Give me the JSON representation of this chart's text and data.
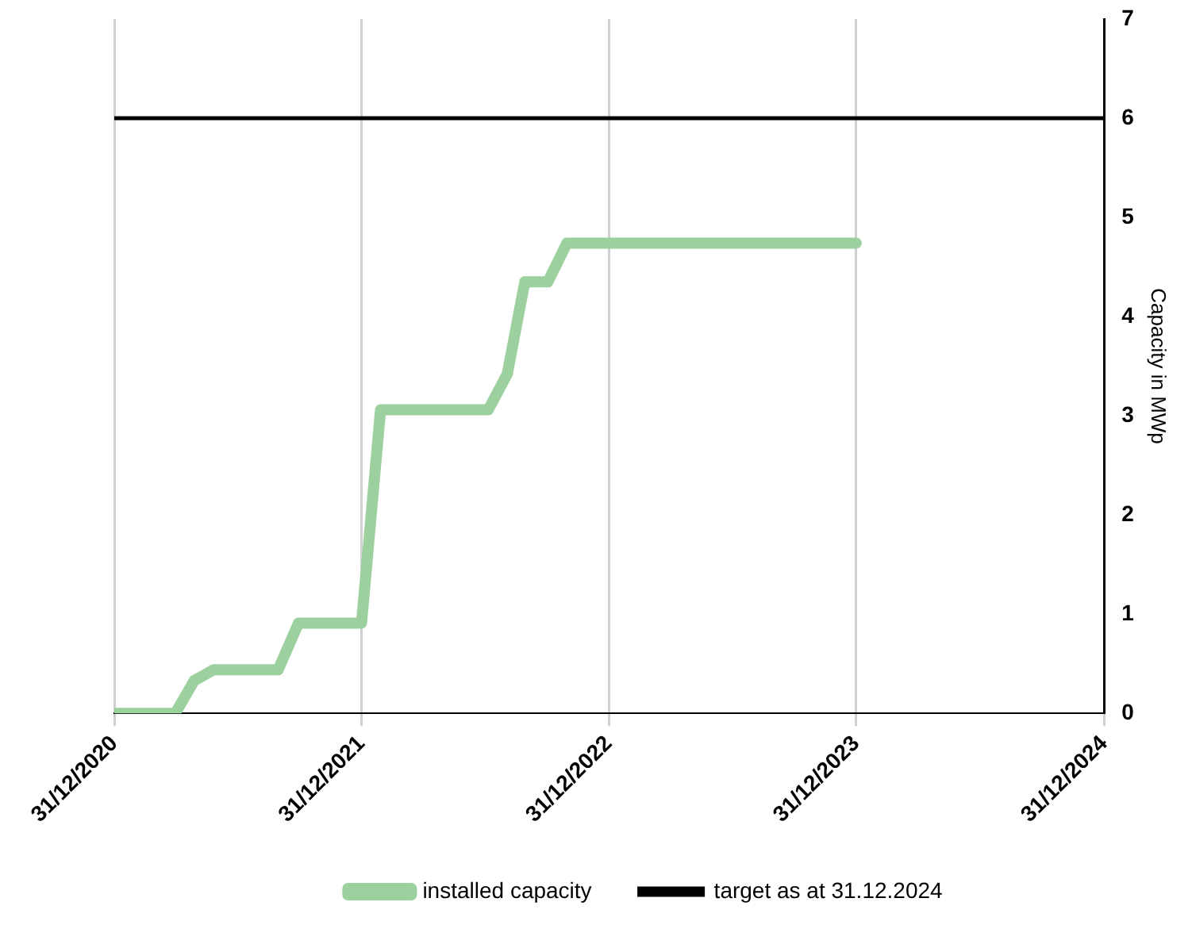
{
  "chart_data": {
    "type": "line",
    "ylabel": "Capacity in MWp",
    "x": [
      "2020-12-31",
      "2021-03-31",
      "2021-04-28",
      "2021-05-27",
      "2021-08-30",
      "2021-09-29",
      "2021-12-31",
      "2022-01-28",
      "2022-07-06",
      "2022-08-03",
      "2022-08-29",
      "2022-10-02",
      "2022-10-30",
      "2023-12-31"
    ],
    "series": [
      {
        "name": "installed capacity",
        "color": "#9dd09f",
        "values": [
          0,
          0,
          0.33,
          0.44,
          0.44,
          0.91,
          0.91,
          3.06,
          3.06,
          3.42,
          4.35,
          4.35,
          4.74,
          4.74
        ]
      }
    ],
    "ref_lines": [
      {
        "axis": "y",
        "value": 6,
        "label": "target as at 31.12.2024",
        "color": "#000000"
      }
    ],
    "xlim": [
      "2020-12-31",
      "2024-12-31"
    ],
    "xticks": [
      {
        "value": "2020-12-31",
        "label": "31/12/2020"
      },
      {
        "value": "2021-12-31",
        "label": "31/12/2021"
      },
      {
        "value": "2022-12-31",
        "label": "31/12/2022"
      },
      {
        "value": "2023-12-31",
        "label": "31/12/2023"
      },
      {
        "value": "2024-12-31",
        "label": "31/12/2024"
      }
    ],
    "ylim": [
      0,
      7
    ],
    "yticks": [
      0,
      1,
      2,
      3,
      4,
      5,
      6,
      7
    ],
    "grid": "x",
    "legend": "bottom",
    "marker": "none",
    "line_style": "solid"
  }
}
